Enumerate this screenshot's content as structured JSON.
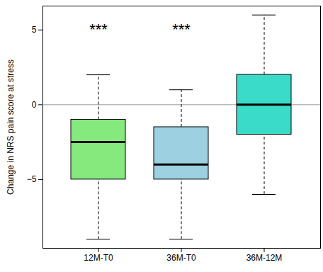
{
  "chart_data": {
    "type": "boxplot",
    "y_label": "Change in NRS pain score at stress",
    "categories": [
      "12M-T0",
      "36M-T0",
      "36M-12M"
    ],
    "boxes": [
      {
        "whislo": -9,
        "q1": -5,
        "med": -2.5,
        "q3": -1,
        "whishi": 2
      },
      {
        "whislo": -9,
        "q1": -5,
        "med": -4,
        "q3": -1.5,
        "whishi": 1
      },
      {
        "whislo": -6,
        "q1": -2,
        "med": 0,
        "q3": 2,
        "whishi": 6
      }
    ],
    "colors": [
      "#85e97e",
      "#9dd0e0",
      "#3adcc9"
    ],
    "ylim": [
      -9.6,
      6.6
    ],
    "yticks": [
      -5,
      0,
      5
    ],
    "reference_line": 0,
    "annotations": [
      {
        "category": "12M-T0",
        "y": 5,
        "text": "***"
      },
      {
        "category": "36M-T0",
        "y": 5,
        "text": "***"
      }
    ]
  }
}
